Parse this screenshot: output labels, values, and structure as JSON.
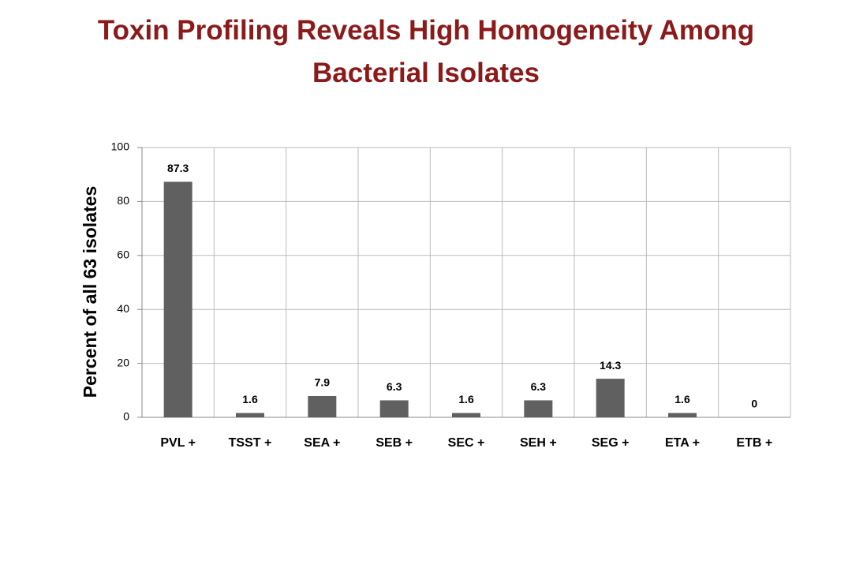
{
  "chart_data": {
    "type": "bar",
    "title": "Toxin Profiling Reveals High Homogeneity Among Bacterial Isolates",
    "y_label": "Percent of all 63 isolates",
    "categories": [
      "PVL +",
      "TSST +",
      "SEA +",
      "SEB +",
      "SEC +",
      "SEH +",
      "SEG +",
      "ETA +",
      "ETB +"
    ],
    "values": [
      87.3,
      1.6,
      7.9,
      6.3,
      1.6,
      6.3,
      14.3,
      1.6,
      0
    ],
    "color": "#606060",
    "ylim": [
      0,
      100
    ],
    "yticks": [
      0,
      20,
      40,
      60,
      80,
      100
    ],
    "grid": true
  }
}
